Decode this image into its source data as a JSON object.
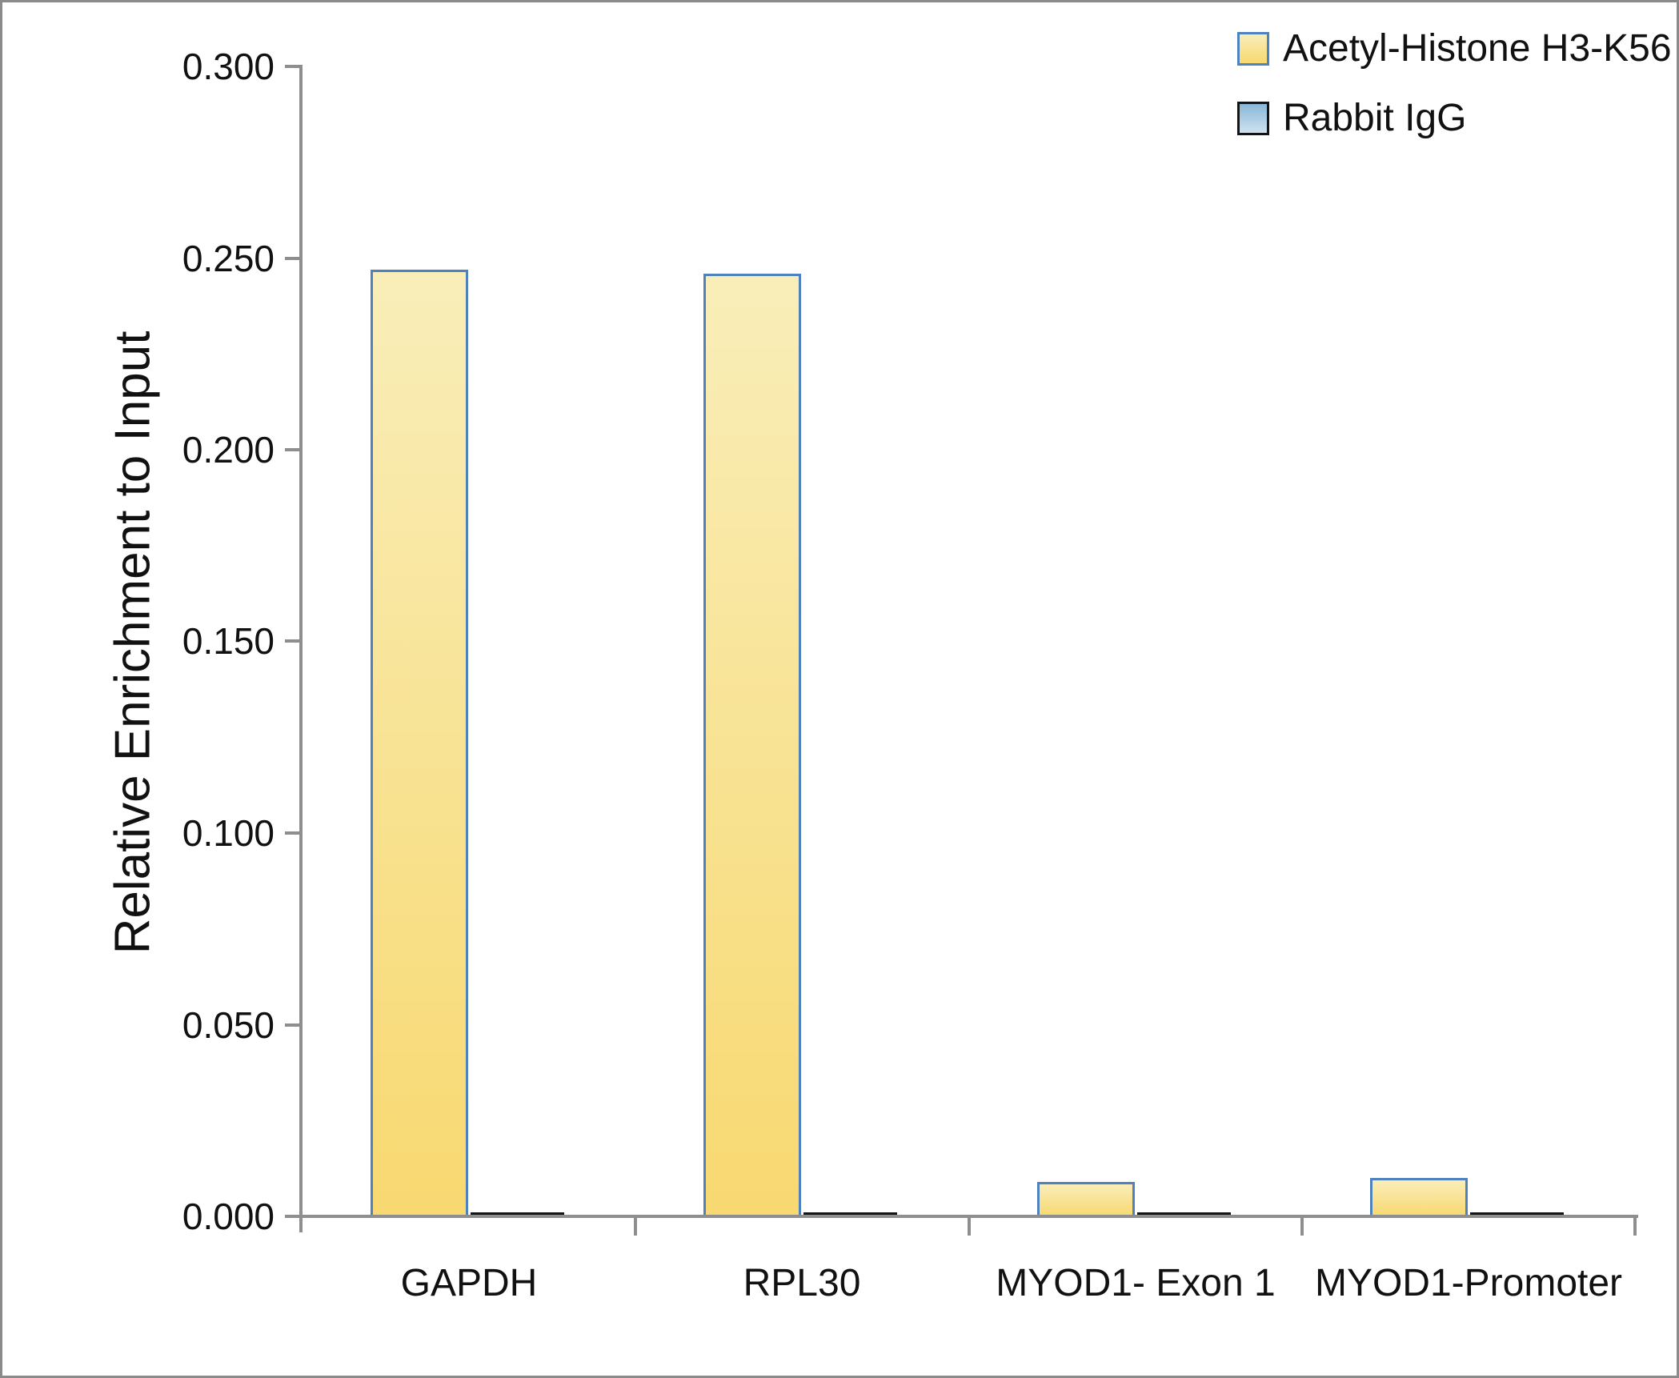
{
  "chart_data": {
    "type": "bar",
    "title": "",
    "xlabel": "",
    "ylabel": "Relative Enrichment to Input",
    "categories": [
      "GAPDH",
      "RPL30",
      "MYOD1- Exon 1",
      "MYOD1-Promoter"
    ],
    "series": [
      {
        "name": "Acetyl-Histone H3-K56",
        "values": [
          0.247,
          0.246,
          0.009,
          0.01
        ],
        "fill_top": "#f9eeb9",
        "fill_bottom": "#f8d870",
        "border_color": "#4f81bd"
      },
      {
        "name": "Rabbit IgG",
        "values": [
          0.001,
          0.001,
          0.001,
          0.001
        ],
        "fill_top": "#89b7d7",
        "fill_bottom": "#cfe2ef",
        "border_color": "#141414"
      }
    ],
    "ylim": [
      0,
      0.3
    ],
    "ytick_step": 0.05,
    "ytick_labels": [
      "0.000",
      "0.050",
      "0.100",
      "0.150",
      "0.200",
      "0.250",
      "0.300"
    ],
    "grid": false,
    "legend_position": "top-right",
    "axis_color": "#8e8e8e",
    "bar_fill_flat_blue": "#a9cee6"
  }
}
